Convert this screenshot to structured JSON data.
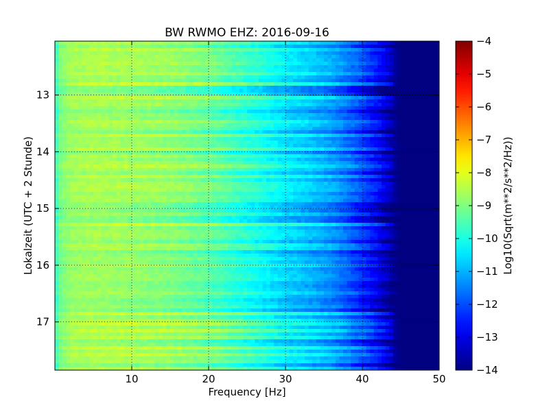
{
  "chart_data": {
    "type": "heatmap",
    "title": "BW RWMO EHZ: 2016-09-16",
    "xlabel": "Frequency [Hz]",
    "ylabel": "Lokalzeit (UTC + 2 Stunde)",
    "xlim": [
      0,
      50
    ],
    "ylim": [
      12.05,
      17.85
    ],
    "y_inverted": true,
    "x_ticks": [
      "10",
      "20",
      "30",
      "40",
      "50"
    ],
    "x_tick_values": [
      10,
      20,
      30,
      40,
      50
    ],
    "y_ticks": [
      "13",
      "14",
      "15",
      "16",
      "17"
    ],
    "y_tick_values": [
      13,
      14,
      15,
      16,
      17
    ],
    "grid": true,
    "colormap": "jet",
    "colorbar": {
      "label": "Log10(Sqrt(m**2/s**2/Hz))",
      "range": [
        -14,
        -4
      ],
      "ticks": [
        "−4",
        "−5",
        "−6",
        "−7",
        "−8",
        "−9",
        "−10",
        "−11",
        "−12",
        "−13",
        "−14"
      ],
      "tick_values": [
        -4,
        -5,
        -6,
        -7,
        -8,
        -9,
        -10,
        -11,
        -12,
        -13,
        -14
      ]
    },
    "spectral_profile": {
      "frequency_hz": [
        0,
        0.5,
        2,
        5,
        10,
        15,
        20,
        25,
        28,
        30,
        33,
        36,
        38,
        40,
        42,
        43,
        44,
        45,
        50
      ],
      "log10_amplitude": [
        -10.0,
        -9.1,
        -8.7,
        -8.6,
        -8.7,
        -8.85,
        -9.2,
        -9.8,
        -10.2,
        -10.5,
        -10.8,
        -11.2,
        -11.6,
        -12.1,
        -12.7,
        -13.1,
        -13.6,
        -14,
        -14
      ]
    }
  }
}
